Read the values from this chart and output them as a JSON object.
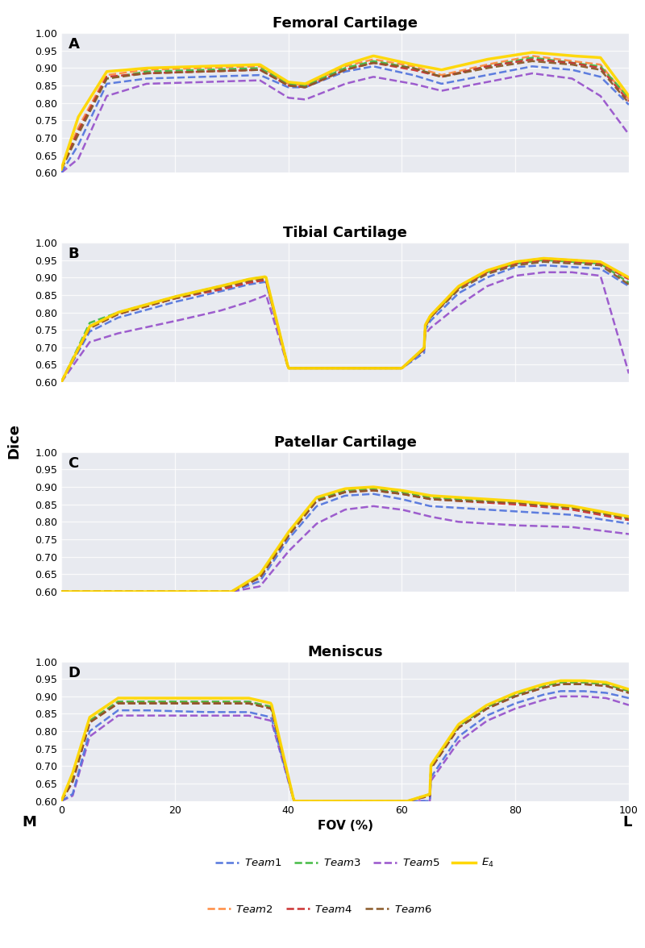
{
  "titles": [
    "Femoral Cartilage",
    "Tibial Cartilage",
    "Patellar Cartilage",
    "Meniscus"
  ],
  "panel_labels": [
    "A",
    "B",
    "C",
    "D"
  ],
  "xlabel": "FOV (%)",
  "ylabel": "Dice",
  "ylim": [
    0.6,
    1.0
  ],
  "yticks": [
    0.6,
    0.65,
    0.7,
    0.75,
    0.8,
    0.85,
    0.9,
    0.95,
    1.0
  ],
  "xlim": [
    0,
    100
  ],
  "xticks": [
    0,
    20,
    40,
    60,
    80,
    100
  ],
  "bg_color": "#e8eaf0",
  "fig_bg": "#ffffff",
  "teams": [
    "Team 1",
    "Team 2",
    "Team 3",
    "Team 4",
    "Team 5",
    "Team 6",
    "E4"
  ],
  "colors": [
    "#5577dd",
    "#ff8c42",
    "#44bb44",
    "#cc3333",
    "#9955cc",
    "#8b5a2b",
    "#ffd700"
  ],
  "linewidths": [
    1.8,
    1.8,
    1.8,
    1.8,
    1.8,
    1.8,
    2.5
  ],
  "linestyles": [
    "--",
    "--",
    "--",
    "--",
    "--",
    "--",
    "-"
  ]
}
